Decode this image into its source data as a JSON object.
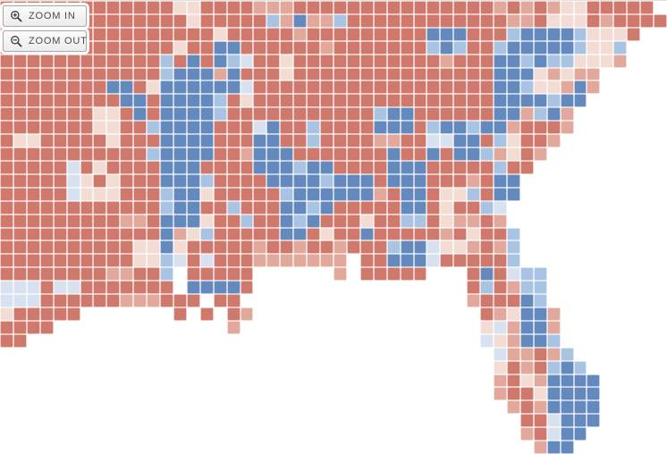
{
  "toolbar": {
    "zoom_in_label": "ZOOM IN",
    "zoom_out_label": "ZOOM OUT",
    "zoom_in_icon": "magnifier-plus",
    "zoom_out_icon": "magnifier-minus"
  },
  "map": {
    "type": "choropleth",
    "region": "Southeastern United States county-level red/blue results map (Texas and Arkansas east to the Carolinas, south through Louisiana, Mississippi, Alabama, Georgia and Florida; Gulf of Mexico and Atlantic shown as white water)",
    "palette": {
      "R": "#cf796c",
      "r": "#e3a89c",
      "p": "#f2dcd4",
      "B": "#6389bd",
      "b": "#a9c4e2",
      "l": "#d8e1ef",
      "w": "#ffffff"
    },
    "legend": {
      "R": "strong red county",
      "r": "lean red county",
      "p": "slight red county",
      "B": "strong blue county",
      "b": "lean blue county",
      "l": "slight blue county",
      "w": "water"
    },
    "county_border_color": "#ffffff",
    "grid": {
      "cols": 50,
      "rows": 34,
      "cells": [
        "RRRRRRRRRRRRRppRRRRrrrRRRRRRRRRRRRRRRrRrRrppRRRRRw",
        "RRRRRRRRRRRRRRpRRRRRbrBrrbRRRRRRRRRRRRrrRpppRrRRRR",
        "RRRRRRRRRRRRRRRRpRRRRRrRRRRRRRRRBBBRRRbBBBBbpppRww",
        "RRRRRRRRRRRRRpRRBBRRRRRRrRRRRRRRbBbRRbBBBBBbppbwww",
        "RRRRRRRRRRRRbRBRBblRRpRRRRRRRRRRRrRRRBBbBbbppprwww",
        "RRRRRRRRRRRRbBBBrBRRRpRRRRRRRRRRRRRRRBBBprprrwwwww",
        "RRRRRRRRBBRpBBBBBBlRRRRRRRRRRRRRRRRRRBBbpprBrwwwww",
        "RRRRRRRRRBBRBBBBbRpRRRRRRRRRRRRRRRRRRBBBBbBBwwwwww",
        "RRRRRRRppRBRBBBBbRRRRRRRRRRRbBBRRRRRRBBrbBrwwwwwww",
        "RRRRRRRppRRbBBBBRRRlBRRbRRRRBBBRbBBbBBrRRRrwwwwwww",
        "RppRRRRRpRRRBBBBRRRBBRRbRRRRrrRRllBBRbpRRrwwwwwwww",
        "RRRRRRRRRRRbBBBBRRrBBBRRRRRRRBRRBRBBbrpRrwwwwwwwww",
        "RRRRRlRpRRRRBBBRRRRBBBbBBRRRRBBBRRRRRbRRwwwwwwwwww",
        "RRRRRlpRpRRRBBBbRRRRBBBBbBBBRBBBRRRrRBBwwwwwwwwwww",
        "RRRRRlpppRRRbBBpRRRRRbBBBBBBrRBBRppbRBBwwwwwwwwwww",
        "RRRRRRRRRRRRbBBRRbRRRBBbBRRRRRBBRpRRblwwwwwwwwwwww",
        "RRRRRRRRRrrRBBBpRRbRRBbBRRRpRRbbRprrRrwwwwwwwwwwww",
        "RRRRRRRRRRRRBrpbRRRRRBBRpRRBRRRRRrRpRRbwwwwwwwwwww",
        "RRRRRRRRRRppBpRRRRRrRRrRRrRRRbBBlpprRrbwwwwwwwwwww",
        "RRRRRRRRRRppblRlRRRrrrrrrrwRRBBBlRRRRRbwwwwwwwwwww",
        "RRRRRRRRrrRRbwRRRRRwwwwwwrwRRRRRwwwRBRlbbwwwwwwwww",
        "lllRllRRRRRRRwBBBBRwwwwwwwwwwwwwwwwRbRrbbwwwwwwwww",
        "lllRRRRRRrrrRRRwRRwwwwwwwwwwwwwwwwwrRRRBbwwwwwwwww",
        "pRRRRRwwwwwwwRwRwRrwwwwwwwwwwwwwwwwwRrpBBrwwwwwwww",
        "RRRRwwwwwwwwwwwwwrwwwwwwwwwwwwwwwwwwplrBBrwwwwwwww",
        "RRwwwwwwwwwwwwwwwwwwwwwwwwwwwwwwwwwwlprBBbwwwwwwww",
        "wwwwwwwwwwwwwwwwwwwwwwwwwwwwwwwwwwwwwlrrRrbwwwwwww",
        "wwwwwwwwwwwwwwwwwwwwwwwwwwwwwwwwwwwwwpRrRbBbwwwwww",
        "wwwwwwwwwwwwwwwwwwwwwwwwwwwwwwwwwwwwwrRprBBBBwwwww",
        "wwwwwwwwwwwwwwwwwwwwwwwwwwwwwwwwwwwwwrRRpBBBBwwwww",
        "wwwwwwwwwwwwwwwwwwwwwwwwwwwwwwwwwwwwwwrRrBBBBwwwww",
        "wwwwwwwwwwwwwwwwwwwwwwwwwwwwwwwwwwwwwwwRRlBBBwwwww",
        "wwwwwwwwwwwwwwwwwwwwwwwwwwwwwwwwwwwwwwwrRlBBwwwwww",
        "wwwwwwwwwwwwwwwwwwwwwwwwwwwwwwwwwwwwwwwwrBBwwwwwww"
      ]
    }
  }
}
